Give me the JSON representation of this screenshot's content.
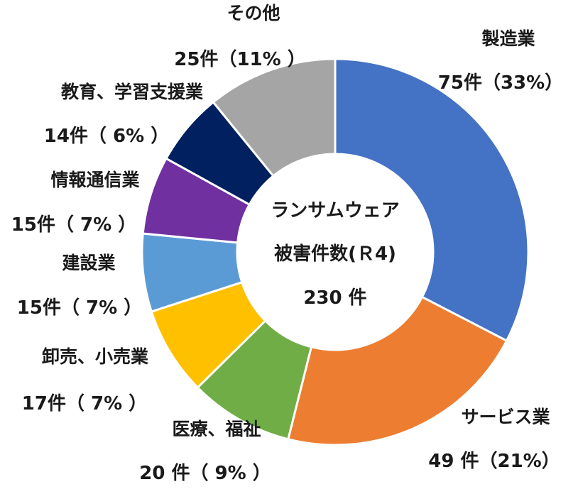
{
  "chart_data": {
    "type": "donut",
    "total_label": {
      "line1": "ランサムウェア",
      "line2": "被害件数(Ｒ4)",
      "line3": "230 件"
    },
    "slices": [
      {
        "name": "製造業",
        "value": 75,
        "label": "75件（33%）",
        "color": "#4472C4"
      },
      {
        "name": "サービス業",
        "value": 49,
        "label": "49 件（21%）",
        "color": "#ED7D31"
      },
      {
        "name": "医療、福祉",
        "value": 20,
        "label": "20 件（ 9% ）",
        "color": "#70AD47"
      },
      {
        "name": "卸売、小売業",
        "value": 17,
        "label": "17件（ 7% ）",
        "color": "#FFC000"
      },
      {
        "name": "建設業",
        "value": 15,
        "label": "15件（ 7% ）",
        "color": "#5B9BD5"
      },
      {
        "name": "情報通信業",
        "value": 15,
        "label": "15件（ 7% ）",
        "color": "#7030A0"
      },
      {
        "name": "教育、学習支援業",
        "value": 14,
        "label": "14件（ 6% ）",
        "color": "#002060"
      },
      {
        "name": "その他",
        "value": 25,
        "label": "25件（11% ）",
        "color": "#A5A5A5"
      }
    ]
  }
}
